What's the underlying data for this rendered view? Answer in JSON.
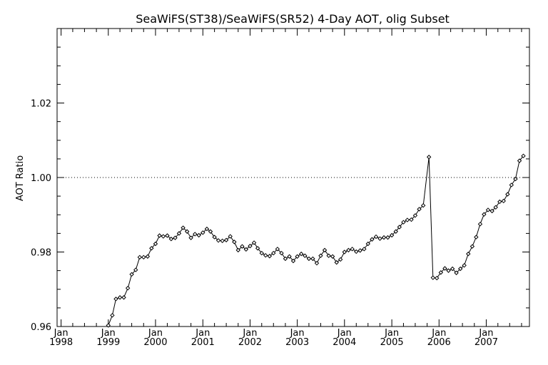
{
  "chart_data": {
    "type": "line",
    "title": "SeaWiFS(ST38)/SeaWiFS(SR52) 4-Day AOT, olig Subset",
    "xlabel": "",
    "ylabel": "AOT Ratio",
    "xlim": [
      "1997-12",
      "2007-12"
    ],
    "ylim": [
      0.96,
      1.04
    ],
    "y_ticks": [
      "0.96",
      "0.98",
      "1.00",
      "1.02"
    ],
    "y_tick_values": [
      0.96,
      0.98,
      1.0,
      1.02
    ],
    "x_ticks": [
      {
        "month": "Jan",
        "year": "1998",
        "x": "1998-01"
      },
      {
        "month": "Jan",
        "year": "1999",
        "x": "1999-01"
      },
      {
        "month": "Jan",
        "year": "2000",
        "x": "2000-01"
      },
      {
        "month": "Jan",
        "year": "2001",
        "x": "2001-01"
      },
      {
        "month": "Jan",
        "year": "2002",
        "x": "2002-01"
      },
      {
        "month": "Jan",
        "year": "2003",
        "x": "2003-01"
      },
      {
        "month": "Jan",
        "year": "2004",
        "x": "2004-01"
      },
      {
        "month": "Jan",
        "year": "2005",
        "x": "2005-01"
      },
      {
        "month": "Jan",
        "year": "2006",
        "x": "2006-01"
      },
      {
        "month": "Jan",
        "year": "2007",
        "x": "2007-01"
      }
    ],
    "reference_line": {
      "y": 1.0,
      "style": "dotted"
    },
    "grid": false,
    "series": [
      {
        "marker": "diamond",
        "points": [
          [
            "1998-12-01",
            0.9586
          ],
          [
            "1999-01-01",
            0.9603
          ],
          [
            "1999-02-01",
            0.963
          ],
          [
            "1999-03-01",
            0.9674
          ],
          [
            "1999-04-01",
            0.9678
          ],
          [
            "1999-05-01",
            0.9678
          ],
          [
            "1999-06-01",
            0.9703
          ],
          [
            "1999-07-01",
            0.974
          ],
          [
            "1999-08-01",
            0.9752
          ],
          [
            "1999-09-01",
            0.9786
          ],
          [
            "1999-10-01",
            0.9786
          ],
          [
            "1999-11-01",
            0.9788
          ],
          [
            "1999-12-01",
            0.981
          ],
          [
            "2000-01-01",
            0.9822
          ],
          [
            "2000-02-01",
            0.9844
          ],
          [
            "2000-03-01",
            0.9842
          ],
          [
            "2000-04-01",
            0.9844
          ],
          [
            "2000-05-01",
            0.9835
          ],
          [
            "2000-06-01",
            0.9838
          ],
          [
            "2000-07-01",
            0.985
          ],
          [
            "2000-08-01",
            0.9865
          ],
          [
            "2000-09-01",
            0.9855
          ],
          [
            "2000-10-01",
            0.9838
          ],
          [
            "2000-11-01",
            0.9848
          ],
          [
            "2000-12-01",
            0.9845
          ],
          [
            "2001-01-01",
            0.9852
          ],
          [
            "2001-02-01",
            0.9862
          ],
          [
            "2001-03-01",
            0.9855
          ],
          [
            "2001-04-01",
            0.984
          ],
          [
            "2001-05-01",
            0.9831
          ],
          [
            "2001-06-01",
            0.983
          ],
          [
            "2001-07-01",
            0.9832
          ],
          [
            "2001-08-01",
            0.9842
          ],
          [
            "2001-09-01",
            0.9827
          ],
          [
            "2001-10-01",
            0.9805
          ],
          [
            "2001-11-01",
            0.9815
          ],
          [
            "2001-12-01",
            0.9807
          ],
          [
            "2002-01-01",
            0.9816
          ],
          [
            "2002-02-01",
            0.9825
          ],
          [
            "2002-03-01",
            0.981
          ],
          [
            "2002-04-01",
            0.9797
          ],
          [
            "2002-05-01",
            0.9791
          ],
          [
            "2002-06-01",
            0.9789
          ],
          [
            "2002-07-01",
            0.9797
          ],
          [
            "2002-08-01",
            0.9808
          ],
          [
            "2002-09-01",
            0.9797
          ],
          [
            "2002-10-01",
            0.9782
          ],
          [
            "2002-11-01",
            0.9788
          ],
          [
            "2002-12-01",
            0.9776
          ],
          [
            "2003-01-01",
            0.9788
          ],
          [
            "2003-02-01",
            0.9795
          ],
          [
            "2003-03-01",
            0.979
          ],
          [
            "2003-04-01",
            0.9782
          ],
          [
            "2003-05-01",
            0.9782
          ],
          [
            "2003-06-01",
            0.977
          ],
          [
            "2003-07-01",
            0.979
          ],
          [
            "2003-08-01",
            0.9805
          ],
          [
            "2003-09-01",
            0.979
          ],
          [
            "2003-10-01",
            0.9788
          ],
          [
            "2003-11-01",
            0.9772
          ],
          [
            "2003-12-01",
            0.978
          ],
          [
            "2004-01-01",
            0.98
          ],
          [
            "2004-02-01",
            0.9805
          ],
          [
            "2004-03-01",
            0.9808
          ],
          [
            "2004-04-01",
            0.9801
          ],
          [
            "2004-05-01",
            0.9804
          ],
          [
            "2004-06-01",
            0.9808
          ],
          [
            "2004-07-01",
            0.9822
          ],
          [
            "2004-08-01",
            0.9834
          ],
          [
            "2004-09-01",
            0.9841
          ],
          [
            "2004-10-01",
            0.9836
          ],
          [
            "2004-11-01",
            0.9839
          ],
          [
            "2004-12-01",
            0.9839
          ],
          [
            "2005-01-01",
            0.9845
          ],
          [
            "2005-02-01",
            0.9855
          ],
          [
            "2005-03-01",
            0.9867
          ],
          [
            "2005-04-01",
            0.988
          ],
          [
            "2005-05-01",
            0.9886
          ],
          [
            "2005-06-01",
            0.9887
          ],
          [
            "2005-07-01",
            0.9898
          ],
          [
            "2005-08-01",
            0.9915
          ],
          [
            "2005-09-01",
            0.9925
          ],
          [
            "2005-10-15",
            1.0055
          ],
          [
            "2005-11-15",
            0.9731
          ],
          [
            "2005-12-15",
            0.973
          ],
          [
            "2006-01-15",
            0.9745
          ],
          [
            "2006-02-15",
            0.9756
          ],
          [
            "2006-03-15",
            0.975
          ],
          [
            "2006-04-15",
            0.9755
          ],
          [
            "2006-05-15",
            0.9744
          ],
          [
            "2006-06-15",
            0.9755
          ],
          [
            "2006-07-15",
            0.9764
          ],
          [
            "2006-08-15",
            0.9795
          ],
          [
            "2006-09-15",
            0.9815
          ],
          [
            "2006-10-15",
            0.984
          ],
          [
            "2006-11-15",
            0.9875
          ],
          [
            "2006-12-15",
            0.9901
          ],
          [
            "2007-01-15",
            0.9913
          ],
          [
            "2007-02-15",
            0.991
          ],
          [
            "2007-03-15",
            0.992
          ],
          [
            "2007-04-15",
            0.9935
          ],
          [
            "2007-05-15",
            0.9937
          ],
          [
            "2007-06-15",
            0.9955
          ],
          [
            "2007-07-15",
            0.998
          ],
          [
            "2007-08-15",
            0.9996
          ],
          [
            "2007-09-15",
            1.0045
          ],
          [
            "2007-10-15",
            1.0058
          ]
        ]
      }
    ]
  }
}
